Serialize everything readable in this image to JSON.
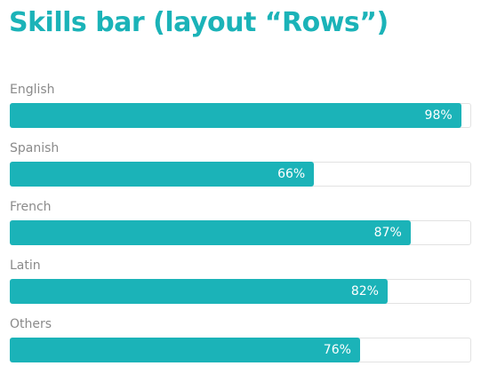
{
  "page": {
    "title": "Skills bar (layout “Rows”)"
  },
  "colors": {
    "accent": "#1bb3b8",
    "label": "#8a8a8a",
    "track_border": "#e2e2e2"
  },
  "skills": [
    {
      "label": "English",
      "value": 98,
      "percent_text": "98%"
    },
    {
      "label": "Spanish",
      "value": 66,
      "percent_text": "66%"
    },
    {
      "label": "French",
      "value": 87,
      "percent_text": "87%"
    },
    {
      "label": "Latin",
      "value": 82,
      "percent_text": "82%"
    },
    {
      "label": "Others",
      "value": 76,
      "percent_text": "76%"
    }
  ]
}
